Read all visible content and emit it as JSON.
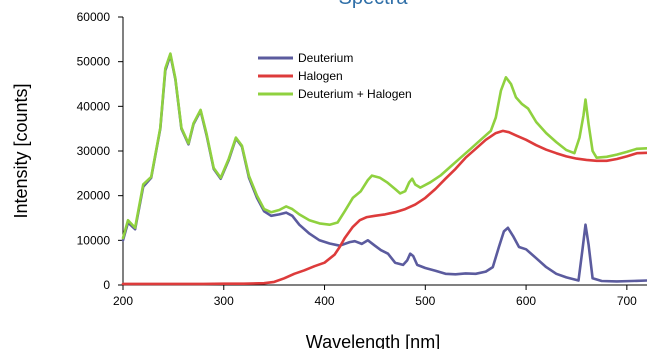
{
  "chart_data": {
    "type": "line",
    "title": "Spectra",
    "xlabel": "Wavelength [nm]",
    "ylabel": "Intensity [counts]",
    "xlim": [
      200,
      720
    ],
    "ylim": [
      0,
      60000
    ],
    "x_ticks": [
      200,
      300,
      400,
      500,
      600,
      700
    ],
    "y_ticks": [
      0,
      10000,
      20000,
      30000,
      40000,
      50000,
      60000
    ],
    "x_tick_labels": [
      "200",
      "300",
      "400",
      "500",
      "600",
      "700"
    ],
    "y_tick_labels": [
      "0",
      "10000",
      "20000",
      "30000",
      "40000",
      "50000",
      "60000"
    ],
    "grid": false,
    "legend_position": "top-center",
    "colors": {
      "title": "#2f6fa8",
      "axis": "#000000"
    },
    "series": [
      {
        "name": "Deuterium",
        "color": "#5b5b9e",
        "points": [
          [
            200,
            10000
          ],
          [
            205,
            14000
          ],
          [
            212,
            12500
          ],
          [
            220,
            22000
          ],
          [
            228,
            24000
          ],
          [
            237,
            35000
          ],
          [
            242,
            48000
          ],
          [
            247,
            51500
          ],
          [
            252,
            46000
          ],
          [
            258,
            35000
          ],
          [
            265,
            31500
          ],
          [
            270,
            36000
          ],
          [
            277,
            39000
          ],
          [
            283,
            33500
          ],
          [
            290,
            26000
          ],
          [
            297,
            23800
          ],
          [
            305,
            28000
          ],
          [
            312,
            32800
          ],
          [
            318,
            31000
          ],
          [
            325,
            24000
          ],
          [
            333,
            19500
          ],
          [
            340,
            16500
          ],
          [
            347,
            15500
          ],
          [
            355,
            15800
          ],
          [
            362,
            16200
          ],
          [
            368,
            15500
          ],
          [
            375,
            13500
          ],
          [
            385,
            11500
          ],
          [
            395,
            10000
          ],
          [
            405,
            9300
          ],
          [
            415,
            8800
          ],
          [
            425,
            9600
          ],
          [
            430,
            9800
          ],
          [
            437,
            9200
          ],
          [
            443,
            10000
          ],
          [
            450,
            8800
          ],
          [
            456,
            7800
          ],
          [
            463,
            7000
          ],
          [
            470,
            5000
          ],
          [
            478,
            4500
          ],
          [
            482,
            5500
          ],
          [
            485,
            7000
          ],
          [
            488,
            6500
          ],
          [
            492,
            4500
          ],
          [
            500,
            3800
          ],
          [
            510,
            3200
          ],
          [
            520,
            2500
          ],
          [
            530,
            2400
          ],
          [
            540,
            2600
          ],
          [
            550,
            2500
          ],
          [
            560,
            3000
          ],
          [
            567,
            4000
          ],
          [
            573,
            8500
          ],
          [
            578,
            12000
          ],
          [
            582,
            12800
          ],
          [
            587,
            11000
          ],
          [
            593,
            8500
          ],
          [
            600,
            8000
          ],
          [
            610,
            6000
          ],
          [
            620,
            4000
          ],
          [
            630,
            2500
          ],
          [
            640,
            1700
          ],
          [
            652,
            1000
          ],
          [
            656,
            8000
          ],
          [
            659,
            13500
          ],
          [
            662,
            9000
          ],
          [
            666,
            1500
          ],
          [
            675,
            900
          ],
          [
            690,
            800
          ],
          [
            705,
            900
          ],
          [
            720,
            1000
          ]
        ]
      },
      {
        "name": "Halogen",
        "color": "#dd3b3b",
        "points": [
          [
            200,
            250
          ],
          [
            220,
            250
          ],
          [
            240,
            250
          ],
          [
            260,
            250
          ],
          [
            280,
            250
          ],
          [
            300,
            300
          ],
          [
            320,
            300
          ],
          [
            340,
            400
          ],
          [
            350,
            700
          ],
          [
            360,
            1500
          ],
          [
            370,
            2500
          ],
          [
            380,
            3300
          ],
          [
            390,
            4200
          ],
          [
            400,
            5000
          ],
          [
            410,
            6800
          ],
          [
            415,
            8500
          ],
          [
            420,
            10500
          ],
          [
            428,
            13000
          ],
          [
            435,
            14500
          ],
          [
            442,
            15200
          ],
          [
            450,
            15500
          ],
          [
            460,
            15800
          ],
          [
            470,
            16300
          ],
          [
            480,
            17000
          ],
          [
            490,
            18000
          ],
          [
            500,
            19500
          ],
          [
            510,
            21500
          ],
          [
            520,
            23800
          ],
          [
            530,
            26000
          ],
          [
            540,
            28500
          ],
          [
            550,
            30500
          ],
          [
            560,
            32500
          ],
          [
            570,
            34000
          ],
          [
            577,
            34500
          ],
          [
            583,
            34200
          ],
          [
            590,
            33500
          ],
          [
            600,
            32500
          ],
          [
            610,
            31300
          ],
          [
            620,
            30300
          ],
          [
            630,
            29500
          ],
          [
            640,
            28800
          ],
          [
            650,
            28300
          ],
          [
            660,
            28000
          ],
          [
            670,
            27800
          ],
          [
            680,
            27800
          ],
          [
            690,
            28200
          ],
          [
            700,
            28800
          ],
          [
            710,
            29500
          ],
          [
            720,
            29600
          ]
        ]
      },
      {
        "name": "Deuterium + Halogen",
        "color": "#8fd13f",
        "points": [
          [
            200,
            10500
          ],
          [
            205,
            14500
          ],
          [
            212,
            12800
          ],
          [
            220,
            22500
          ],
          [
            228,
            24200
          ],
          [
            237,
            35200
          ],
          [
            242,
            48500
          ],
          [
            247,
            51800
          ],
          [
            252,
            46200
          ],
          [
            258,
            35200
          ],
          [
            265,
            31700
          ],
          [
            270,
            36200
          ],
          [
            277,
            39200
          ],
          [
            283,
            33800
          ],
          [
            290,
            26200
          ],
          [
            297,
            24000
          ],
          [
            305,
            28300
          ],
          [
            312,
            33000
          ],
          [
            318,
            31200
          ],
          [
            325,
            24400
          ],
          [
            333,
            20000
          ],
          [
            340,
            17000
          ],
          [
            347,
            16300
          ],
          [
            355,
            16800
          ],
          [
            362,
            17600
          ],
          [
            368,
            17000
          ],
          [
            375,
            15800
          ],
          [
            385,
            14500
          ],
          [
            395,
            13800
          ],
          [
            405,
            13500
          ],
          [
            413,
            14000
          ],
          [
            420,
            16500
          ],
          [
            428,
            19500
          ],
          [
            436,
            21000
          ],
          [
            443,
            23500
          ],
          [
            447,
            24500
          ],
          [
            455,
            24000
          ],
          [
            462,
            23000
          ],
          [
            470,
            21500
          ],
          [
            475,
            20500
          ],
          [
            480,
            21000
          ],
          [
            484,
            23000
          ],
          [
            487,
            23800
          ],
          [
            490,
            22500
          ],
          [
            495,
            21800
          ],
          [
            505,
            23000
          ],
          [
            515,
            24500
          ],
          [
            525,
            26500
          ],
          [
            535,
            28500
          ],
          [
            545,
            30500
          ],
          [
            555,
            32500
          ],
          [
            565,
            34500
          ],
          [
            570,
            37500
          ],
          [
            575,
            43500
          ],
          [
            580,
            46500
          ],
          [
            585,
            45000
          ],
          [
            590,
            42000
          ],
          [
            596,
            40500
          ],
          [
            602,
            39500
          ],
          [
            610,
            36500
          ],
          [
            620,
            34000
          ],
          [
            630,
            32000
          ],
          [
            640,
            30200
          ],
          [
            648,
            29500
          ],
          [
            653,
            33000
          ],
          [
            657,
            38000
          ],
          [
            659,
            41500
          ],
          [
            662,
            36000
          ],
          [
            666,
            30000
          ],
          [
            670,
            28500
          ],
          [
            680,
            28700
          ],
          [
            690,
            29200
          ],
          [
            700,
            29800
          ],
          [
            710,
            30500
          ],
          [
            720,
            30600
          ]
        ]
      }
    ]
  }
}
